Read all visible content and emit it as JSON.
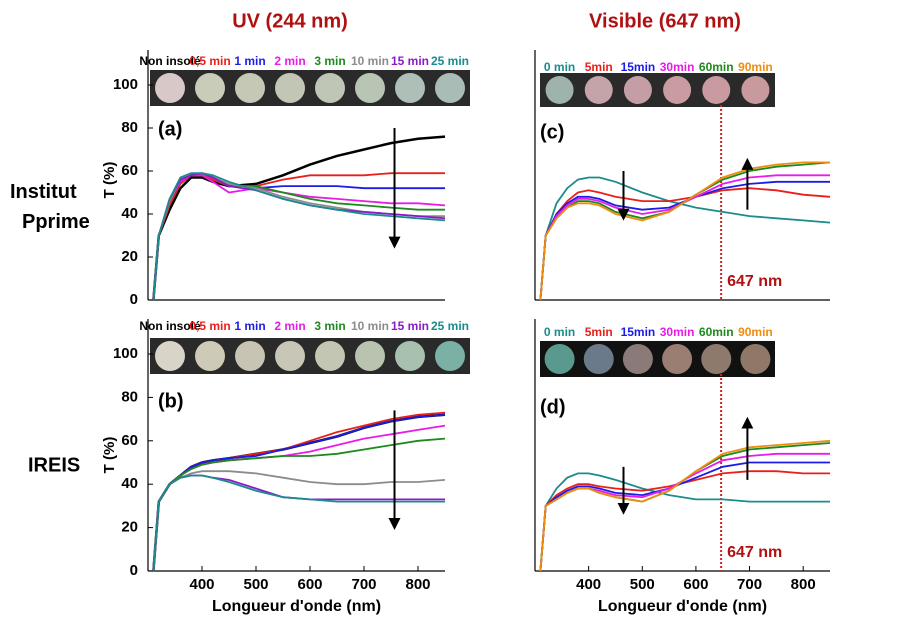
{
  "column_titles": [
    "UV (244 nm)",
    "Visible (647 nm)"
  ],
  "row_labels": [
    "Institut Pprime",
    "IREIS"
  ],
  "chart_data": [
    {
      "type": "line",
      "label": "(a)",
      "ylabel": "T (%)",
      "x": [
        310,
        320,
        340,
        360,
        380,
        400,
        420,
        450,
        500,
        550,
        600,
        650,
        700,
        750,
        800,
        850
      ],
      "xlim": [
        300,
        850
      ],
      "ylim": [
        0,
        100
      ],
      "yticks": [
        0,
        20,
        40,
        60,
        80,
        100
      ],
      "series": [
        {
          "name": "Non insolé",
          "color": "#000000",
          "values": [
            0,
            30,
            42,
            52,
            57,
            57,
            55,
            53,
            54,
            58,
            63,
            67,
            70,
            73,
            75,
            76
          ]
        },
        {
          "name": "0,5 min",
          "color": "#e8201c",
          "values": [
            0,
            30,
            44,
            54,
            58,
            58,
            56,
            53,
            53,
            56,
            58,
            58,
            58,
            59,
            59,
            59
          ]
        },
        {
          "name": "1 min",
          "color": "#1c1ce8",
          "values": [
            0,
            30,
            46,
            55,
            58,
            59,
            57,
            54,
            52,
            53,
            53,
            53,
            52,
            52,
            52,
            52
          ]
        },
        {
          "name": "2 min",
          "color": "#e81ce8",
          "values": [
            0,
            30,
            46,
            55,
            58,
            58,
            55,
            50,
            52,
            50,
            48,
            47,
            46,
            45,
            45,
            44
          ]
        },
        {
          "name": "3 min",
          "color": "#1c8a1c",
          "values": [
            0,
            30,
            46,
            56,
            58,
            59,
            57,
            53,
            53,
            50,
            47,
            45,
            44,
            43,
            42,
            42
          ]
        },
        {
          "name": "10 min",
          "color": "#8c8c8c",
          "values": [
            0,
            30,
            46,
            56,
            58,
            59,
            57,
            54,
            52,
            48,
            45,
            43,
            41,
            40,
            39,
            39
          ]
        },
        {
          "name": "15 min",
          "color": "#8a1cc8",
          "values": [
            0,
            30,
            47,
            56,
            58,
            59,
            57,
            53,
            51,
            47,
            44,
            42,
            41,
            40,
            39,
            38
          ]
        },
        {
          "name": "25 min",
          "color": "#1a8c8c",
          "values": [
            0,
            30,
            47,
            57,
            59,
            59,
            58,
            55,
            51,
            47,
            44,
            42,
            40,
            39,
            38,
            37
          ]
        }
      ]
    },
    {
      "type": "line",
      "label": "(b)",
      "ylabel": "T (%)",
      "xlabel": "Longueur d'onde (nm)",
      "x": [
        310,
        320,
        340,
        360,
        380,
        400,
        420,
        450,
        500,
        550,
        600,
        650,
        700,
        750,
        800,
        850
      ],
      "xlim": [
        300,
        850
      ],
      "xticks": [
        400,
        500,
        600,
        700,
        800
      ],
      "ylim": [
        0,
        100
      ],
      "yticks": [
        0,
        20,
        40,
        60,
        80,
        100
      ],
      "series": [
        {
          "name": "Non insolé",
          "color": "#000000",
          "values": [
            0,
            32,
            40,
            44,
            48,
            50,
            51,
            52,
            54,
            56,
            59,
            62,
            66,
            69,
            71,
            72
          ]
        },
        {
          "name": "0,5 min",
          "color": "#e8201c",
          "values": [
            0,
            32,
            40,
            44,
            48,
            50,
            51,
            52,
            54,
            56,
            60,
            64,
            67,
            70,
            72,
            73
          ]
        },
        {
          "name": "1 min",
          "color": "#1c1ce8",
          "values": [
            0,
            32,
            40,
            44,
            48,
            50,
            51,
            52,
            53,
            56,
            59,
            62,
            66,
            69,
            71,
            72
          ]
        },
        {
          "name": "2 min",
          "color": "#e81ce8",
          "values": [
            0,
            32,
            40,
            44,
            47,
            49,
            50,
            51,
            52,
            53,
            55,
            58,
            61,
            63,
            65,
            67
          ]
        },
        {
          "name": "3 min",
          "color": "#1c8a1c",
          "values": [
            0,
            32,
            40,
            44,
            47,
            49,
            50,
            51,
            52,
            53,
            53,
            54,
            56,
            58,
            60,
            61
          ]
        },
        {
          "name": "10 min",
          "color": "#8c8c8c",
          "values": [
            0,
            32,
            40,
            43,
            45,
            46,
            46,
            46,
            45,
            43,
            41,
            40,
            40,
            41,
            41,
            42
          ]
        },
        {
          "name": "15 min",
          "color": "#8a1cc8",
          "values": [
            0,
            32,
            40,
            43,
            44,
            44,
            43,
            42,
            38,
            34,
            33,
            33,
            33,
            33,
            33,
            33
          ]
        },
        {
          "name": "25 min",
          "color": "#1a8c8c",
          "values": [
            0,
            32,
            40,
            43,
            44,
            44,
            43,
            41,
            37,
            34,
            33,
            32,
            32,
            32,
            32,
            32
          ]
        }
      ]
    },
    {
      "type": "line",
      "label": "(c)",
      "annotation": "647 nm",
      "vline": 647,
      "x": [
        310,
        320,
        340,
        360,
        380,
        400,
        420,
        450,
        500,
        550,
        600,
        650,
        700,
        750,
        800,
        850
      ],
      "xlim": [
        300,
        850
      ],
      "ylim": [
        0,
        100
      ],
      "series": [
        {
          "name": "0 min",
          "color": "#1a8c8c",
          "values": [
            0,
            30,
            45,
            52,
            56,
            57,
            57,
            55,
            50,
            46,
            43,
            41,
            39,
            38,
            37,
            36
          ]
        },
        {
          "name": "5min",
          "color": "#e8201c",
          "values": [
            0,
            30,
            40,
            46,
            50,
            51,
            50,
            48,
            46,
            46,
            48,
            51,
            52,
            51,
            49,
            48
          ]
        },
        {
          "name": "15min",
          "color": "#1c1ce8",
          "values": [
            0,
            30,
            40,
            45,
            48,
            48,
            47,
            44,
            42,
            43,
            48,
            52,
            54,
            55,
            55,
            55
          ]
        },
        {
          "name": "30min",
          "color": "#e81ce8",
          "values": [
            0,
            30,
            39,
            44,
            47,
            47,
            46,
            43,
            40,
            42,
            48,
            54,
            57,
            58,
            58,
            58
          ]
        },
        {
          "name": "60min",
          "color": "#1c8a1c",
          "values": [
            0,
            30,
            38,
            43,
            46,
            46,
            45,
            41,
            38,
            41,
            49,
            56,
            60,
            62,
            63,
            64
          ]
        },
        {
          "name": "90min",
          "color": "#f08c10",
          "values": [
            0,
            30,
            38,
            43,
            45,
            45,
            44,
            40,
            37,
            41,
            49,
            57,
            61,
            63,
            64,
            64
          ]
        }
      ]
    },
    {
      "type": "line",
      "label": "(d)",
      "annotation": "647 nm",
      "vline": 647,
      "xlabel": "Longueur d'onde (nm)",
      "x": [
        310,
        320,
        340,
        360,
        380,
        400,
        420,
        450,
        500,
        550,
        600,
        650,
        700,
        750,
        800,
        850
      ],
      "xlim": [
        300,
        850
      ],
      "xticks": [
        400,
        500,
        600,
        700,
        800
      ],
      "ylim": [
        0,
        100
      ],
      "series": [
        {
          "name": "0 min",
          "color": "#1a8c8c",
          "values": [
            0,
            30,
            38,
            43,
            45,
            45,
            44,
            42,
            38,
            35,
            33,
            33,
            32,
            32,
            32,
            32
          ]
        },
        {
          "name": "5min",
          "color": "#e8201c",
          "values": [
            0,
            30,
            35,
            38,
            40,
            40,
            39,
            38,
            37,
            39,
            42,
            45,
            46,
            46,
            45,
            45
          ]
        },
        {
          "name": "15min",
          "color": "#1c1ce8",
          "values": [
            0,
            30,
            34,
            37,
            39,
            39,
            38,
            36,
            35,
            38,
            43,
            48,
            50,
            50,
            50,
            50
          ]
        },
        {
          "name": "30min",
          "color": "#e81ce8",
          "values": [
            0,
            30,
            33,
            36,
            38,
            38,
            37,
            35,
            34,
            38,
            45,
            51,
            53,
            54,
            54,
            54
          ]
        },
        {
          "name": "60min",
          "color": "#1c8a1c",
          "values": [
            0,
            30,
            33,
            36,
            38,
            38,
            36,
            34,
            32,
            37,
            46,
            53,
            56,
            57,
            58,
            59
          ]
        },
        {
          "name": "90min",
          "color": "#f08c10",
          "values": [
            0,
            30,
            33,
            36,
            38,
            38,
            36,
            34,
            32,
            37,
            46,
            54,
            57,
            58,
            59,
            60
          ]
        }
      ]
    }
  ]
}
